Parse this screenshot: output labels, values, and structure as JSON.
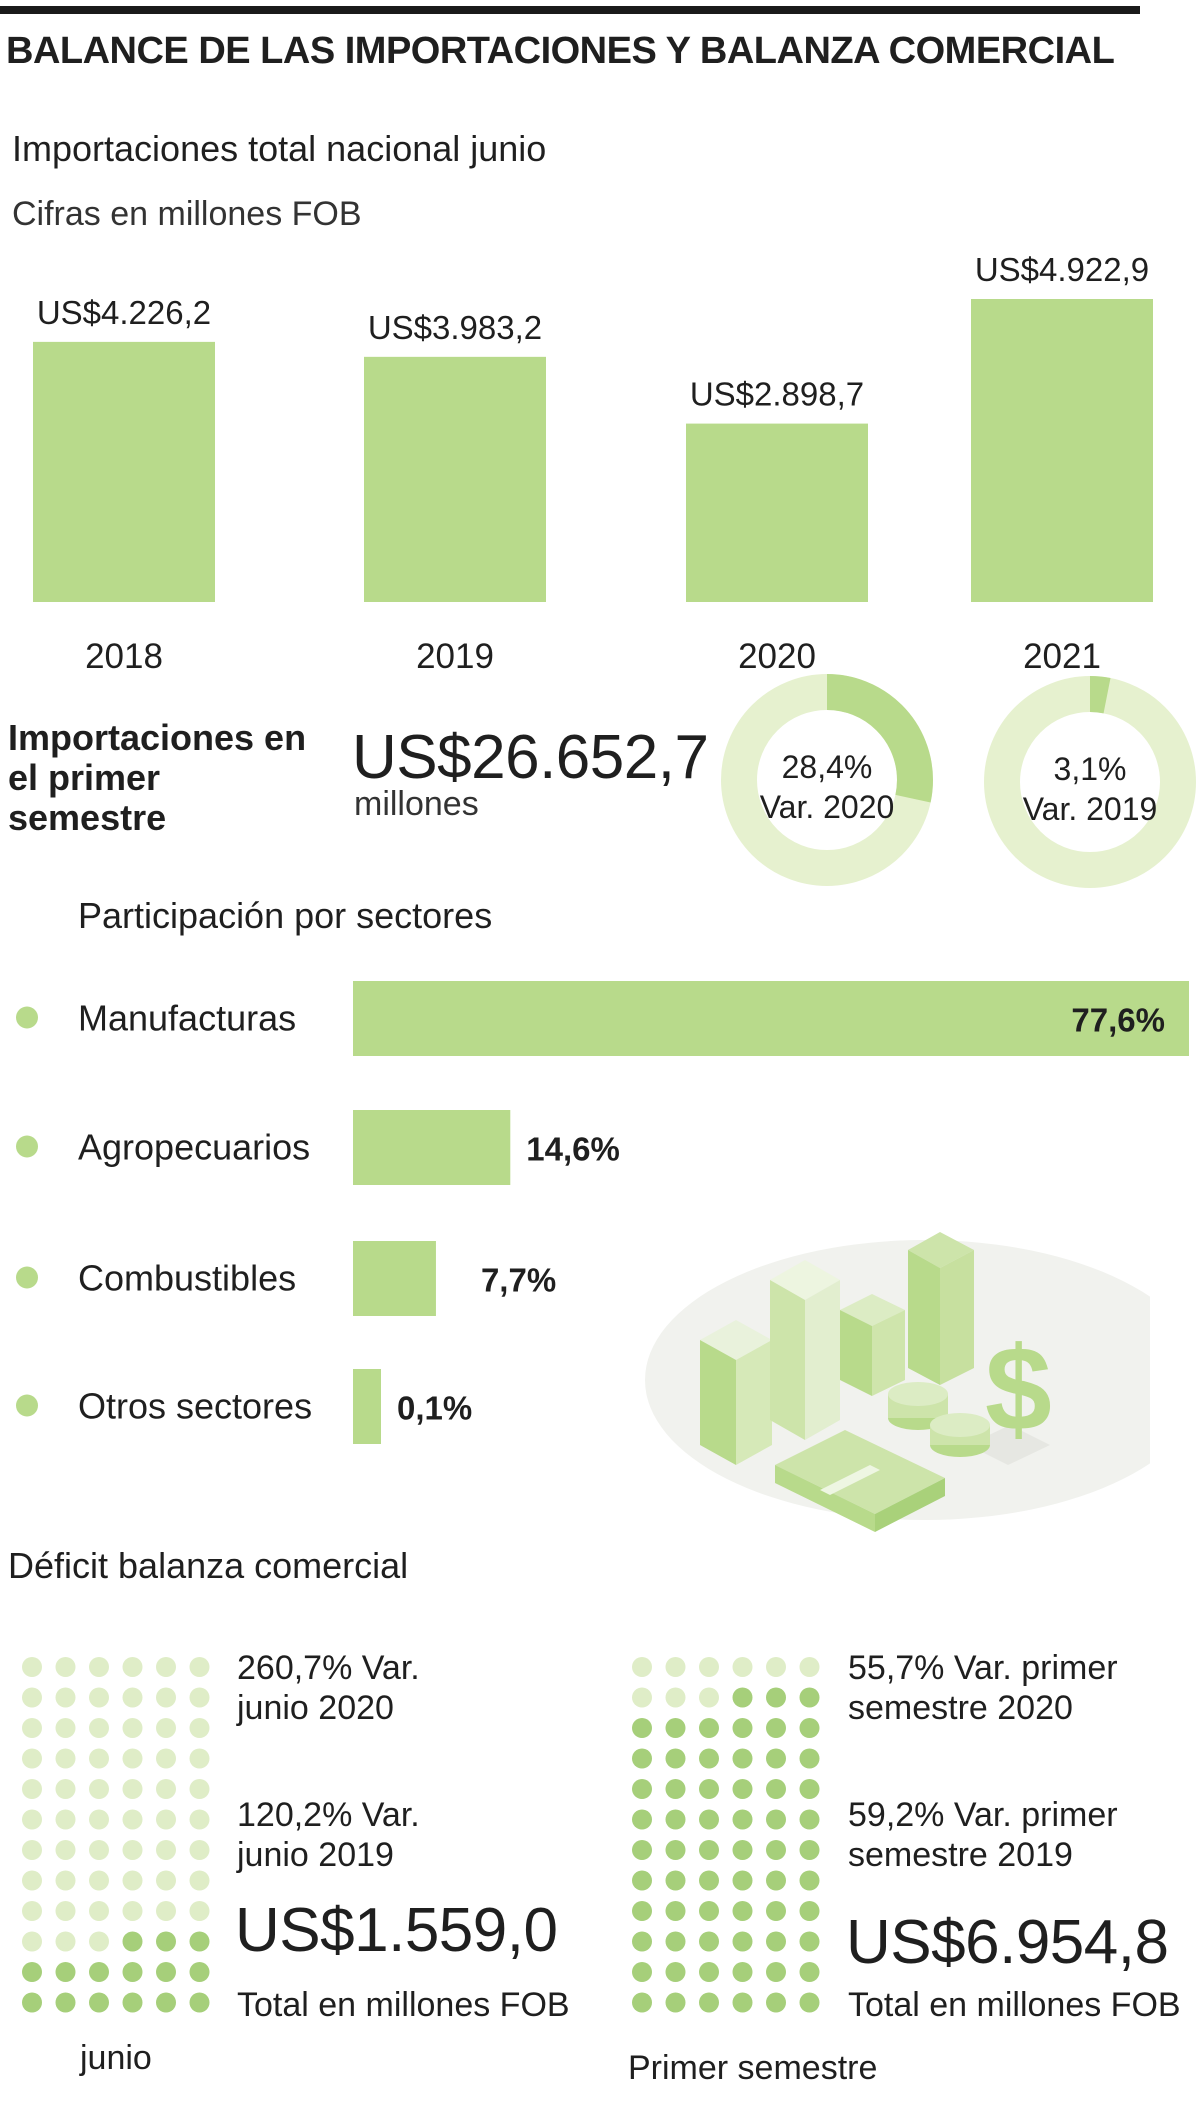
{
  "title": "BALANCE DE LAS IMPORTACIONES Y BALANZA COMERCIAL",
  "colors": {
    "bar": "#b8da8b",
    "light": "#e6f1cf",
    "dot_dark": "#a6cf7a",
    "dot_light": "#dfedc7",
    "text": "#1f1f1f",
    "rule": "#1a1a1a"
  },
  "chart_data": [
    {
      "type": "bar",
      "title": "Importaciones total nacional junio",
      "subtitle": "Cifras en millones FOB",
      "categories": [
        "2018",
        "2019",
        "2020",
        "2021"
      ],
      "values": [
        4226.2,
        3983.2,
        2898.7,
        4922.9
      ],
      "value_labels": [
        "US$4.226,2",
        "US$3.983,2",
        "US$2.898,7",
        "US$4.922,9"
      ]
    },
    {
      "type": "pie",
      "title": "Importaciones en el primer semestre",
      "total_label": "US$26.652,7",
      "total_unit": "millones",
      "donuts": [
        {
          "value": 28.4,
          "label": "28,4%",
          "sublabel": "Var. 2020"
        },
        {
          "value": 3.1,
          "label": "3,1%",
          "sublabel": "Var. 2019"
        }
      ]
    },
    {
      "type": "bar",
      "orientation": "horizontal",
      "title": "Participación por sectores",
      "categories": [
        "Manufacturas",
        "Agropecuarios",
        "Combustibles",
        "Otros sectores"
      ],
      "values": [
        77.6,
        14.6,
        7.7,
        0.1
      ],
      "value_labels": [
        "77,6%",
        "14,6%",
        "7,7%",
        "0,1%"
      ]
    }
  ],
  "deficit": {
    "title": "Déficit balanza comercial",
    "junio": {
      "var1": "260,7% Var.\njunio 2020",
      "var2": "120,2% Var.\njunio 2019",
      "total": "US$1.559,0",
      "total_label": "Total en millones FOB",
      "caption": "junio",
      "filled_dots": 15
    },
    "semestre": {
      "var1": "55,7% Var. primer\nsemestre 2020",
      "var2": "59,2% Var. primer\nsemestre 2019",
      "total": "US$6.954,8",
      "total_label": "Total en millones FOB",
      "caption": "Primer semestre",
      "filled_dots": 63
    }
  }
}
